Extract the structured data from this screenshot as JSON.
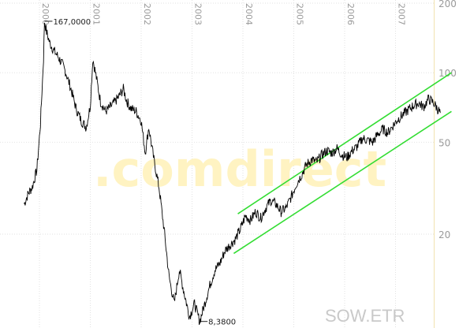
{
  "chart_data": {
    "type": "line",
    "title": "",
    "xlabel": "",
    "ylabel": "",
    "yscale": "log",
    "ylim": [
      5.5,
      200
    ],
    "xlim": [
      1999.7,
      2008.1
    ],
    "year_labels": [
      "2000",
      "2001",
      "2002",
      "2003",
      "2004",
      "2005",
      "2006",
      "2007"
    ],
    "y_ticks": [
      {
        "value": 200,
        "label": "200"
      },
      {
        "value": 100,
        "label": "100"
      },
      {
        "value": 50,
        "label": "50"
      },
      {
        "value": 20,
        "label": "20"
      }
    ],
    "grid": true,
    "watermark": ".comdirect",
    "symbol_label": "SOW.ETR",
    "annotations": [
      {
        "label": "167,0000",
        "x": 2000.1,
        "y": 167
      },
      {
        "label": "8,3800",
        "x": 2003.15,
        "y": 8.38
      }
    ],
    "series": [
      {
        "color": "#000000",
        "x": [
          1999.7,
          1999.78,
          1999.86,
          1999.95,
          2000.02,
          2000.08,
          2000.1,
          2000.14,
          2000.2,
          2000.28,
          2000.36,
          2000.44,
          2000.52,
          2000.62,
          2000.72,
          2000.82,
          2000.92,
          2001.0,
          2001.05,
          2001.12,
          2001.2,
          2001.3,
          2001.42,
          2001.55,
          2001.65,
          2001.72,
          2001.8,
          2001.9,
          2002.0,
          2002.08,
          2002.15,
          2002.25,
          2002.35,
          2002.45,
          2002.55,
          2002.65,
          2002.75,
          2002.85,
          2002.95,
          2003.05,
          2003.15,
          2003.25,
          2003.35,
          2003.45,
          2003.55,
          2003.65,
          2003.75,
          2003.85,
          2003.95,
          2004.05,
          2004.15,
          2004.25,
          2004.35,
          2004.45,
          2004.55,
          2004.65,
          2004.75,
          2004.85,
          2004.95,
          2005.05,
          2005.15,
          2005.25,
          2005.35,
          2005.45,
          2005.55,
          2005.65,
          2005.75,
          2005.85,
          2005.95,
          2006.05,
          2006.15,
          2006.25,
          2006.35,
          2006.45,
          2006.55,
          2006.65,
          2006.75,
          2006.85,
          2006.95,
          2007.05,
          2007.15,
          2007.25,
          2007.35,
          2007.45,
          2007.55,
          2007.65,
          2007.75,
          2007.82,
          2007.88
        ],
        "y": [
          27,
          30,
          32,
          38,
          60,
          115,
          167,
          150,
          135,
          125,
          118,
          110,
          100,
          85,
          70,
          62,
          58,
          72,
          115,
          95,
          75,
          68,
          72,
          78,
          85,
          75,
          70,
          68,
          62,
          45,
          58,
          42,
          32,
          21,
          13,
          10,
          14,
          11,
          8.8,
          10,
          8.38,
          10,
          12,
          14,
          15,
          17,
          18,
          19,
          21,
          24,
          23,
          25,
          23.5,
          26,
          28,
          27,
          25,
          26,
          29,
          33,
          36,
          40,
          42,
          41,
          44,
          46,
          45,
          47,
          44,
          43,
          46,
          48,
          52,
          51,
          50,
          54,
          57,
          55,
          59,
          63,
          66,
          69,
          72,
          74,
          71,
          77,
          74,
          70,
          67
        ]
      }
    ],
    "trend_channel": {
      "color": "#33dd33",
      "lines": [
        {
          "x": [
            2003.9,
            2008.1
          ],
          "y": [
            24.5,
            100
          ]
        },
        {
          "x": [
            2003.82,
            2008.1
          ],
          "y": [
            16.5,
            68
          ]
        }
      ]
    }
  }
}
